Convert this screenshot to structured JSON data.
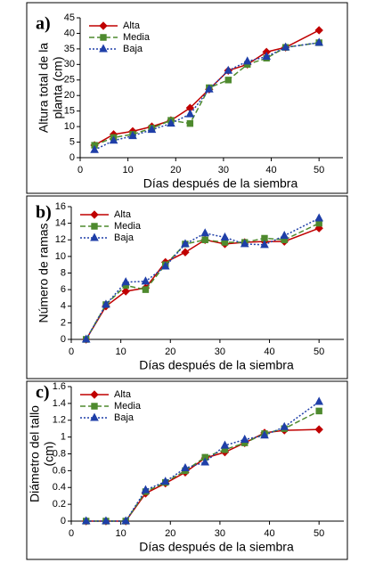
{
  "chart_data": [
    {
      "type": "line",
      "panel_label": "a)",
      "ylabel": [
        "Altura total de la",
        "planta (cm)"
      ],
      "xlabel": "Días después de la siembra",
      "x": [
        3,
        7,
        11,
        15,
        19,
        23,
        27,
        31,
        35,
        39,
        43,
        50
      ],
      "xlim": [
        0,
        55
      ],
      "xticks": [
        0,
        10,
        20,
        30,
        40,
        50
      ],
      "ylim": [
        0,
        45
      ],
      "yticks": [
        0,
        5,
        10,
        15,
        20,
        25,
        30,
        35,
        40,
        45
      ],
      "series": [
        {
          "name": "Alta",
          "color": "#c00000",
          "marker": "diamond",
          "line_style": "solid",
          "values": [
            4,
            7.5,
            8.5,
            10,
            12,
            16,
            22,
            28,
            30,
            34,
            35.5,
            41
          ]
        },
        {
          "name": "Media",
          "color": "#4e8a2e",
          "marker": "square",
          "line_style": "dashed",
          "values": [
            4,
            6.5,
            7.5,
            9.5,
            12,
            11,
            22.5,
            25,
            30,
            32,
            35.5,
            37
          ]
        },
        {
          "name": "Baja",
          "color": "#1f3fa8",
          "marker": "triangle",
          "line_style": "dotted",
          "values": [
            2.5,
            5.5,
            7,
            9,
            11,
            14,
            22,
            28,
            31,
            32.5,
            35.5,
            37
          ]
        }
      ]
    },
    {
      "type": "line",
      "panel_label": "b)",
      "ylabel": [
        "Número de ramas"
      ],
      "xlabel": "Días después de la siembra",
      "x": [
        3,
        7,
        11,
        15,
        19,
        23,
        27,
        31,
        35,
        39,
        43,
        50
      ],
      "xlim": [
        0,
        55
      ],
      "xticks": [
        0,
        10,
        20,
        30,
        40,
        50
      ],
      "ylim": [
        0,
        16
      ],
      "yticks": [
        0,
        2,
        4,
        6,
        8,
        10,
        12,
        14,
        16
      ],
      "series": [
        {
          "name": "Alta",
          "color": "#c00000",
          "marker": "diamond",
          "line_style": "solid",
          "values": [
            0,
            4,
            5.8,
            6.2,
            9.3,
            10.5,
            12,
            11.5,
            11.7,
            11.8,
            11.8,
            13.4
          ]
        },
        {
          "name": "Media",
          "color": "#4e8a2e",
          "marker": "square",
          "line_style": "dashed",
          "values": [
            0,
            4.2,
            6.5,
            6,
            9,
            11.5,
            12,
            11.7,
            11.7,
            12.2,
            12,
            14
          ]
        },
        {
          "name": "Baja",
          "color": "#1f3fa8",
          "marker": "triangle",
          "line_style": "dotted",
          "values": [
            0,
            4.2,
            6.9,
            7,
            8.8,
            11.5,
            12.8,
            12.3,
            11.5,
            11.4,
            12.5,
            14.6
          ]
        }
      ]
    },
    {
      "type": "line",
      "panel_label": "c)",
      "ylabel": [
        "Diámetro del tallo",
        "(cm)"
      ],
      "xlabel": "Días después de la siembra",
      "x": [
        3,
        7,
        11,
        15,
        19,
        23,
        27,
        31,
        35,
        39,
        43,
        50
      ],
      "xlim": [
        0,
        55
      ],
      "xticks": [
        0,
        10,
        20,
        30,
        40,
        50
      ],
      "ylim": [
        0,
        1.6
      ],
      "yticks": [
        0,
        0.2,
        0.4,
        0.6,
        0.8,
        1,
        1.2,
        1.4,
        1.6
      ],
      "series": [
        {
          "name": "Alta",
          "color": "#c00000",
          "marker": "diamond",
          "line_style": "solid",
          "values": [
            0,
            0,
            0,
            0.33,
            0.45,
            0.58,
            0.75,
            0.82,
            0.93,
            1.05,
            1.08,
            1.09
          ]
        },
        {
          "name": "Media",
          "color": "#4e8a2e",
          "marker": "square",
          "line_style": "dashed",
          "values": [
            0,
            0,
            0,
            0.35,
            0.46,
            0.6,
            0.76,
            0.85,
            0.93,
            1.04,
            1.1,
            1.31
          ]
        },
        {
          "name": "Baja",
          "color": "#1f3fa8",
          "marker": "triangle",
          "line_style": "dotted",
          "values": [
            0,
            0,
            0,
            0.37,
            0.47,
            0.63,
            0.7,
            0.9,
            0.97,
            1.02,
            1.12,
            1.42
          ]
        }
      ]
    }
  ]
}
